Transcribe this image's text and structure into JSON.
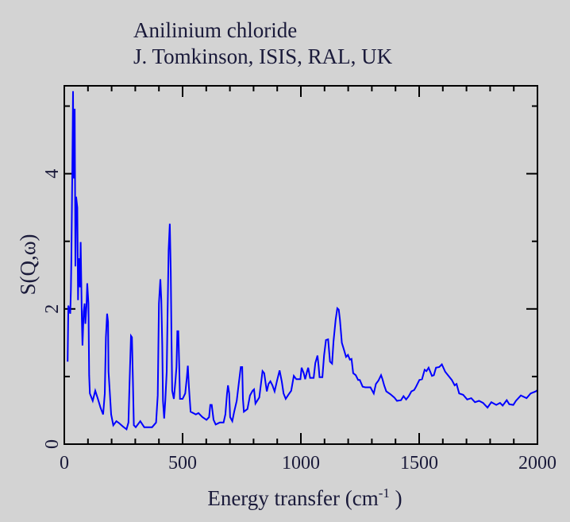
{
  "chart_data": {
    "type": "line",
    "title": "Anilinium chloride",
    "subtitle": "J. Tomkinson, ISIS, RAL, UK",
    "xlabel": "Energy transfer (cm",
    "xlabel_sup": "-1",
    "xlabel_end": " )",
    "ylabel": "S(Q,ω)",
    "xlim": [
      0,
      2000
    ],
    "ylim": [
      0,
      5.3
    ],
    "x_ticks": [
      0,
      500,
      1000,
      1500,
      2000
    ],
    "x_tick_labels": [
      "0",
      "500",
      "1000",
      "1500",
      "2000"
    ],
    "y_ticks": [
      0,
      2,
      4
    ],
    "y_tick_labels": [
      "0",
      "2",
      "4"
    ],
    "grid": false,
    "series": [
      {
        "name": "Anilinium chloride",
        "color": "#0000ff",
        "x": [
          14,
          17,
          25,
          28,
          30,
          34,
          37,
          39,
          44,
          47,
          50,
          55,
          58,
          61,
          66,
          69,
          74,
          77,
          82,
          86,
          89,
          94,
          97,
          102,
          105,
          108,
          120,
          131,
          142,
          153,
          164,
          171,
          176,
          181,
          185,
          187,
          192,
          198,
          207,
          220,
          232,
          248,
          263,
          271,
          276,
          282,
          286,
          290,
          294,
          302,
          321,
          338,
          371,
          388,
          395,
          400,
          406,
          410,
          414,
          417,
          422,
          427,
          433,
          437,
          441,
          444,
          446,
          450,
          453,
          456,
          463,
          470,
          474,
          478,
          482,
          486,
          489,
          500,
          511,
          518,
          522,
          527,
          534,
          556,
          567,
          584,
          601,
          612,
          617,
          623,
          631,
          640,
          657,
          673,
          681,
          688,
          692,
          697,
          701,
          710,
          718,
          729,
          738,
          746,
          752,
          755,
          759,
          774,
          785,
          796,
          802,
          808,
          824,
          838,
          845,
          856,
          863,
          871,
          880,
          889,
          900,
          910,
          919,
          927,
          936,
          947,
          959,
          970,
          981,
          998,
          1003,
          1012,
          1018,
          1026,
          1031,
          1039,
          1054,
          1061,
          1070,
          1075,
          1079,
          1091,
          1098,
          1106,
          1115,
          1123,
          1132,
          1138,
          1147,
          1154,
          1160,
          1165,
          1173,
          1182,
          1191,
          1199,
          1207,
          1214,
          1221,
          1232,
          1242,
          1249,
          1261,
          1272,
          1294,
          1308,
          1317,
          1328,
          1339,
          1345,
          1352,
          1361,
          1378,
          1395,
          1406,
          1423,
          1434,
          1445,
          1456,
          1467,
          1479,
          1487,
          1501,
          1512,
          1523,
          1531,
          1540,
          1554,
          1562,
          1571,
          1585,
          1596,
          1610,
          1624,
          1638,
          1650,
          1658,
          1669,
          1686,
          1703,
          1720,
          1736,
          1753,
          1770,
          1789,
          1805,
          1826,
          1842,
          1853,
          1870,
          1881,
          1898,
          1909,
          1930,
          1954,
          1971,
          1993,
          2000
        ],
        "y": [
          1.22,
          2.05,
          1.93,
          2.28,
          2.75,
          4.05,
          5.22,
          3.93,
          4.96,
          2.63,
          3.66,
          3.5,
          2.13,
          2.75,
          2.32,
          2.99,
          1.85,
          1.46,
          1.96,
          2.08,
          1.78,
          2.05,
          2.38,
          2.08,
          1.02,
          0.75,
          0.64,
          0.79,
          0.67,
          0.54,
          0.44,
          0.75,
          1.58,
          1.93,
          1.81,
          1.07,
          0.79,
          0.44,
          0.28,
          0.34,
          0.31,
          0.26,
          0.22,
          0.32,
          0.91,
          1.6,
          1.58,
          0.95,
          0.28,
          0.25,
          0.34,
          0.25,
          0.25,
          0.32,
          0.72,
          2.08,
          2.44,
          2.13,
          1.46,
          0.64,
          0.38,
          0.64,
          1.07,
          2.01,
          2.87,
          3.11,
          3.26,
          2.55,
          1.58,
          0.79,
          0.67,
          0.95,
          1.14,
          1.67,
          1.67,
          1.14,
          0.67,
          0.67,
          0.75,
          0.99,
          1.16,
          0.84,
          0.48,
          0.44,
          0.46,
          0.4,
          0.36,
          0.4,
          0.58,
          0.58,
          0.36,
          0.29,
          0.32,
          0.32,
          0.44,
          0.75,
          0.87,
          0.75,
          0.4,
          0.34,
          0.48,
          0.64,
          0.91,
          1.14,
          1.14,
          0.67,
          0.48,
          0.52,
          0.72,
          0.79,
          0.81,
          0.6,
          0.69,
          1.08,
          1.05,
          0.78,
          0.89,
          0.93,
          0.87,
          0.78,
          0.95,
          1.09,
          0.93,
          0.75,
          0.67,
          0.73,
          0.79,
          1.01,
          0.96,
          0.96,
          1.13,
          1.05,
          0.96,
          1.07,
          1.13,
          0.98,
          0.98,
          1.2,
          1.31,
          1.16,
          0.99,
          0.99,
          1.31,
          1.54,
          1.55,
          1.22,
          1.19,
          1.52,
          1.84,
          2.01,
          1.99,
          1.84,
          1.5,
          1.4,
          1.29,
          1.32,
          1.25,
          1.26,
          1.05,
          1.02,
          0.95,
          0.95,
          0.85,
          0.84,
          0.84,
          0.75,
          0.89,
          0.94,
          1.02,
          0.96,
          0.87,
          0.78,
          0.74,
          0.69,
          0.64,
          0.65,
          0.71,
          0.66,
          0.71,
          0.78,
          0.8,
          0.85,
          0.95,
          0.96,
          1.1,
          1.08,
          1.13,
          1.01,
          1.02,
          1.13,
          1.14,
          1.18,
          1.07,
          1.01,
          0.95,
          0.87,
          0.89,
          0.75,
          0.73,
          0.66,
          0.68,
          0.62,
          0.64,
          0.61,
          0.54,
          0.62,
          0.58,
          0.61,
          0.57,
          0.65,
          0.59,
          0.58,
          0.64,
          0.72,
          0.68,
          0.75,
          0.78,
          0.8
        ]
      }
    ]
  }
}
